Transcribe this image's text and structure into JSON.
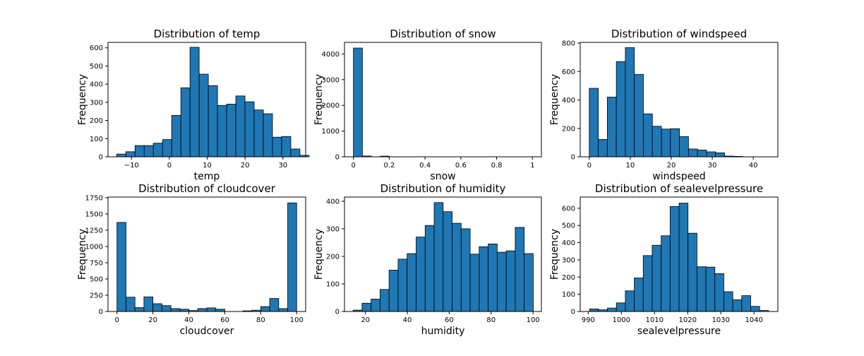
{
  "colors": {
    "bar_fill": "#1f77b4",
    "bar_edge": "#000000"
  },
  "chart_data": [
    {
      "type": "bar",
      "title": "Distribution of temp",
      "xlabel": "temp",
      "ylabel": "Frequency",
      "xlim": [
        -16.2,
        36.0
      ],
      "ylim": [
        0,
        630
      ],
      "xticks": [
        -10,
        0,
        10,
        20,
        30
      ],
      "yticks": [
        0,
        100,
        200,
        300,
        400,
        500,
        600
      ],
      "bin_start": -13.9,
      "bin_width": 2.42,
      "values": [
        15,
        28,
        62,
        62,
        75,
        95,
        228,
        380,
        603,
        455,
        392,
        283,
        290,
        335,
        303,
        258,
        237,
        108,
        112,
        43,
        8
      ]
    },
    {
      "type": "bar",
      "title": "Distribution of snow",
      "xlabel": "snow",
      "ylabel": "Frequency",
      "xlim": [
        -0.05,
        1.05
      ],
      "ylim": [
        0,
        4450
      ],
      "xticks": [
        0.0,
        0.2,
        0.4,
        0.6,
        0.8,
        1.0
      ],
      "yticks": [
        0,
        1000,
        2000,
        3000,
        4000
      ],
      "bin_start": 0.0,
      "bin_width": 0.05,
      "values": [
        4230,
        30,
        3,
        25,
        3,
        0,
        0,
        0,
        0,
        0,
        0,
        0,
        0,
        0,
        0,
        0,
        0,
        0,
        0,
        2
      ]
    },
    {
      "type": "bar",
      "title": "Distribution of windspeed",
      "xlabel": "windspeed",
      "ylabel": "Frequency",
      "xlim": [
        -2.2,
        46.0
      ],
      "ylim": [
        0,
        805
      ],
      "xticks": [
        0,
        10,
        20,
        30,
        40
      ],
      "yticks": [
        0,
        200,
        400,
        600,
        800
      ],
      "bin_start": 0.0,
      "bin_width": 2.2,
      "values": [
        482,
        122,
        420,
        670,
        768,
        580,
        302,
        215,
        195,
        198,
        142,
        55,
        48,
        35,
        28,
        5,
        3,
        0,
        0,
        0
      ]
    },
    {
      "type": "bar",
      "title": "Distribution of cloudcover",
      "xlabel": "cloudcover",
      "ylabel": "Frequency",
      "xlim": [
        -5.0,
        105.0
      ],
      "ylim": [
        0,
        1760
      ],
      "xticks": [
        0,
        20,
        40,
        60,
        80,
        100
      ],
      "yticks": [
        0,
        250,
        500,
        750,
        1000,
        1250,
        1500,
        1750
      ],
      "bin_start": 0.0,
      "bin_width": 5.0,
      "values": [
        1370,
        220,
        60,
        225,
        120,
        90,
        45,
        35,
        15,
        45,
        55,
        35,
        0,
        0,
        10,
        20,
        75,
        200,
        45,
        1670
      ]
    },
    {
      "type": "bar",
      "title": "Distribution of humidity",
      "xlabel": "humidity",
      "ylabel": "Frequency",
      "xlim": [
        10.0,
        104.0
      ],
      "ylim": [
        0,
        415
      ],
      "xticks": [
        20,
        40,
        60,
        80,
        100
      ],
      "yticks": [
        0,
        100,
        200,
        300,
        400
      ],
      "bin_start": 14.1,
      "bin_width": 4.3,
      "values": [
        5,
        30,
        45,
        80,
        150,
        190,
        210,
        270,
        312,
        395,
        362,
        320,
        300,
        208,
        235,
        245,
        215,
        220,
        305,
        210
      ]
    },
    {
      "type": "bar",
      "title": "Distribution of sealevelpressure",
      "xlabel": "sealevelpressure",
      "ylabel": "Frequency",
      "xlim": [
        987.6,
        1047.2
      ],
      "ylim": [
        0,
        665
      ],
      "xticks": [
        990,
        1000,
        1010,
        1020,
        1030,
        1040
      ],
      "yticks": [
        0,
        100,
        200,
        300,
        400,
        500,
        600
      ],
      "bin_start": 990.4,
      "bin_width": 2.7,
      "values": [
        15,
        10,
        20,
        50,
        120,
        195,
        325,
        385,
        440,
        610,
        630,
        455,
        260,
        258,
        220,
        115,
        68,
        92,
        30,
        6
      ]
    }
  ]
}
